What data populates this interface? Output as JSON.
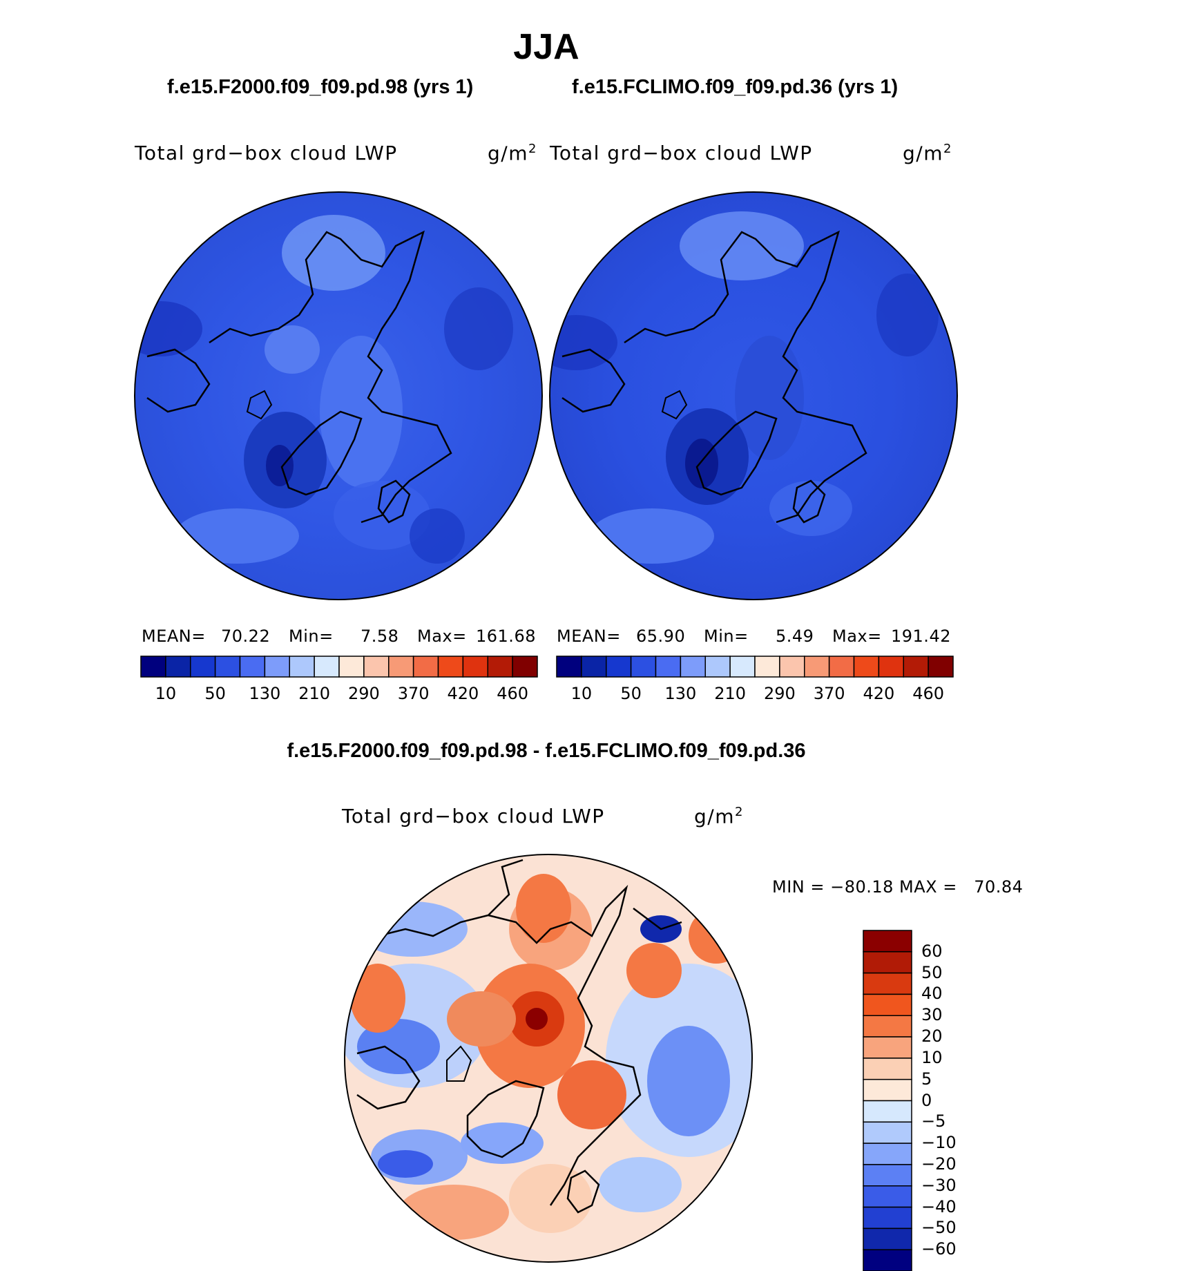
{
  "figure": {
    "title": "JJA",
    "season": "JJA"
  },
  "panels": [
    {
      "case_title": "f.e15.F2000.f09_f09.pd.98 (yrs 1)",
      "variable_label": "Total grd−box cloud LWP",
      "units_base": "g/m",
      "units_exp": "2",
      "stats": {
        "mean_label": "MEAN=",
        "mean": "70.22",
        "min_label": "Min=",
        "min": "7.58",
        "max_label": "Max=",
        "max": "161.68"
      }
    },
    {
      "case_title": "f.e15.FCLIMO.f09_f09.pd.36 (yrs 1)",
      "variable_label": "Total grd−box cloud LWP",
      "units_base": "g/m",
      "units_exp": "2",
      "stats": {
        "mean_label": "MEAN=",
        "mean": "65.90",
        "min_label": "Min=",
        "min": "5.49",
        "max_label": "Max=",
        "max": "191.42"
      }
    }
  ],
  "difference": {
    "title": "f.e15.F2000.f09_f09.pd.98 - f.e15.FCLIMO.f09_f09.pd.36",
    "variable_label": "Total grd−box cloud LWP",
    "units_base": "g/m",
    "units_exp": "2",
    "minmax_text": "MIN = −80.18 MAX =   70.84"
  },
  "colorbar_horizontal": {
    "colors": [
      "#00007e",
      "#0a24a6",
      "#1638cf",
      "#2c50e2",
      "#4a6cf2",
      "#7d9cfa",
      "#adc8fc",
      "#d7e9fd",
      "#fde9d9",
      "#fbc5ad",
      "#f79a76",
      "#f26c46",
      "#ee4a1a",
      "#df330f",
      "#b31b06",
      "#800000"
    ],
    "tick_labels": [
      "10",
      "50",
      "130",
      "210",
      "290",
      "370",
      "420",
      "460"
    ]
  },
  "colorbar_vertical": {
    "colors_top_to_bottom": [
      "#8b0000",
      "#b11b06",
      "#d93a10",
      "#f0561e",
      "#f47844",
      "#f8a47d",
      "#fbd0b5",
      "#fde9d9",
      "#d6e8fd",
      "#b0cafc",
      "#86a6fa",
      "#5c80f4",
      "#3a5ce8",
      "#2240d2",
      "#1028ac",
      "#000080"
    ],
    "tick_labels": [
      "60",
      "50",
      "40",
      "30",
      "20",
      "10",
      "5",
      "0",
      "−5",
      "−10",
      "−20",
      "−30",
      "−40",
      "−50",
      "−60"
    ]
  },
  "chart_data": {
    "type": "heatmap",
    "projection": "north polar stereographic",
    "title": "JJA",
    "panels": [
      "f.e15.F2000.f09_f09.pd.98 (yrs 1)",
      "f.e15.FCLIMO.f09_f09.pd.36 (yrs 1)",
      "f.e15.F2000.f09_f09.pd.98 - f.e15.FCLIMO.f09_f09.pd.36"
    ],
    "units": "g/m2",
    "absolute_levels": [
      10,
      50,
      130,
      210,
      290,
      370,
      420,
      460
    ],
    "difference_levels": [
      -60,
      -50,
      -40,
      -30,
      -20,
      -10,
      -5,
      0,
      5,
      10,
      20,
      30,
      40,
      50,
      60
    ],
    "panel1_mean": 70.22,
    "panel1_min": 7.58,
    "panel1_max": 161.68,
    "panel2_mean": 65.9,
    "panel2_min": 5.49,
    "panel2_max": 191.42,
    "difference_min": -80.18,
    "difference_max": 70.84
  }
}
